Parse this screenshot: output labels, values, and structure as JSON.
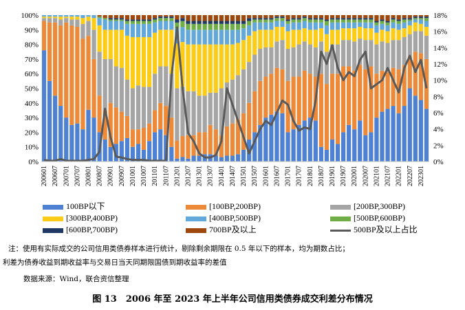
{
  "chart_data": {
    "type": "bar",
    "subtype": "stacked-100-with-line",
    "categories": [
      "200601",
      "200604",
      "200607",
      "200610",
      "200701",
      "200704",
      "200707",
      "200710",
      "200801",
      "200804",
      "200807",
      "200810",
      "200901",
      "200904",
      "200907",
      "200910",
      "201001",
      "201004",
      "201007",
      "201010",
      "201101",
      "201104",
      "201107",
      "201110",
      "201201",
      "201204",
      "201207",
      "201210",
      "201301",
      "201304",
      "201307",
      "201310",
      "201401",
      "201404",
      "201407",
      "201410",
      "201501",
      "201504",
      "201507",
      "201510",
      "201601",
      "201604",
      "201607",
      "201610",
      "201701",
      "201704",
      "201707",
      "201710",
      "201801",
      "201804",
      "201807",
      "201810",
      "201901",
      "201904",
      "201907",
      "201910",
      "202001",
      "202004",
      "202007",
      "202010",
      "202101",
      "202104",
      "202107",
      "202110",
      "202201",
      "202204",
      "202207",
      "202210",
      "202301",
      "202304"
    ],
    "x_tick_labels": [
      "200601",
      "200607",
      "200701",
      "200707",
      "200801",
      "200807",
      "200901",
      "200907",
      "201001",
      "201007",
      "201101",
      "201107",
      "201201",
      "201207",
      "201301",
      "201307",
      "201401",
      "201407",
      "201501",
      "201507",
      "201601",
      "201607",
      "201701",
      "201707",
      "201801",
      "201807",
      "201901",
      "201907",
      "202001",
      "202007",
      "202101",
      "202107",
      "202201",
      "202207",
      "202301"
    ],
    "y_left": {
      "ticks": [
        "0%",
        "10%",
        "20%",
        "30%",
        "40%",
        "50%",
        "60%",
        "70%",
        "80%",
        "90%",
        "100%"
      ],
      "range": [
        0,
        100
      ]
    },
    "y_right": {
      "ticks": [
        "0%",
        "2%",
        "4%",
        "6%",
        "8%",
        "10%",
        "12%",
        "14%",
        "16%",
        "18%"
      ],
      "range": [
        0,
        18
      ]
    },
    "grid": false,
    "legend_position": "bottom",
    "series": [
      {
        "name": "100BP以下",
        "color": "#4f81d2",
        "axis": "left",
        "values": [
          76,
          55,
          45,
          38,
          30,
          25,
          26,
          22,
          35,
          30,
          20,
          15,
          10,
          12,
          14,
          16,
          10,
          12,
          8,
          14,
          20,
          22,
          18,
          10,
          2,
          3,
          2,
          4,
          4,
          5,
          5,
          4,
          3,
          4,
          4,
          5,
          8,
          15,
          20,
          25,
          30,
          32,
          34,
          33,
          20,
          22,
          25,
          28,
          30,
          28,
          10,
          8,
          15,
          12,
          20,
          25,
          22,
          28,
          18,
          20,
          30,
          34,
          36,
          38,
          33,
          38,
          50,
          45,
          42,
          36
        ]
      },
      {
        "name": "[100BP,200BP)",
        "color": "#ed8a3a",
        "axis": "left",
        "values": [
          20,
          40,
          50,
          55,
          65,
          68,
          66,
          62,
          50,
          40,
          25,
          20,
          30,
          25,
          20,
          15,
          12,
          10,
          15,
          12,
          15,
          18,
          20,
          20,
          12,
          14,
          16,
          14,
          16,
          15,
          20,
          18,
          15,
          20,
          22,
          24,
          25,
          25,
          28,
          30,
          28,
          28,
          30,
          30,
          35,
          36,
          33,
          34,
          30,
          30,
          50,
          45,
          45,
          48,
          45,
          40,
          40,
          38,
          45,
          45,
          30,
          28,
          25,
          26,
          30,
          28,
          22,
          30,
          32,
          34
        ]
      },
      {
        "name": "[200BP,300BP)",
        "color": "#a5a5a5",
        "axis": "left",
        "values": [
          2,
          3,
          3,
          4,
          3,
          4,
          5,
          10,
          10,
          20,
          30,
          35,
          30,
          28,
          30,
          25,
          28,
          30,
          28,
          25,
          25,
          25,
          27,
          30,
          35,
          33,
          30,
          30,
          25,
          25,
          22,
          25,
          32,
          30,
          30,
          30,
          30,
          28,
          25,
          22,
          20,
          18,
          18,
          20,
          22,
          20,
          22,
          20,
          20,
          20,
          22,
          22,
          20,
          20,
          18,
          18,
          20,
          18,
          20,
          18,
          20,
          20,
          20,
          19,
          20,
          19,
          15,
          14,
          15,
          16
        ]
      },
      {
        "name": "[300BP,400BP)",
        "color": "#fccc18",
        "axis": "left",
        "values": [
          1,
          1,
          1,
          2,
          1,
          2,
          2,
          4,
          3,
          8,
          18,
          20,
          20,
          25,
          26,
          30,
          35,
          33,
          34,
          34,
          28,
          25,
          25,
          30,
          30,
          30,
          32,
          32,
          35,
          35,
          33,
          33,
          30,
          26,
          24,
          22,
          20,
          18,
          16,
          13,
          12,
          12,
          10,
          9,
          12,
          12,
          10,
          9,
          10,
          12,
          9,
          12,
          10,
          10,
          8,
          8,
          9,
          8,
          8,
          8,
          8,
          8,
          8,
          8,
          7,
          6,
          6,
          6,
          5,
          6
        ]
      },
      {
        "name": "[400BP,500BP)",
        "color": "#62a8da",
        "axis": "left",
        "values": [
          1,
          1,
          1,
          1,
          1,
          1,
          1,
          2,
          1,
          2,
          5,
          7,
          6,
          6,
          6,
          8,
          9,
          9,
          9,
          9,
          7,
          6,
          6,
          6,
          10,
          10,
          10,
          10,
          10,
          10,
          10,
          10,
          10,
          10,
          10,
          9,
          8,
          7,
          6,
          5,
          5,
          5,
          4,
          4,
          5,
          5,
          5,
          5,
          5,
          5,
          4,
          6,
          5,
          5,
          4,
          4,
          4,
          3,
          4,
          4,
          5,
          4,
          4,
          4,
          4,
          4,
          3,
          2,
          3,
          4
        ]
      },
      {
        "name": "[500BP,600BP)",
        "color": "#70ad47",
        "axis": "left",
        "values": [
          0,
          0,
          0,
          0,
          0,
          0,
          0,
          0,
          0,
          0,
          1,
          1,
          1,
          1,
          1,
          2,
          2,
          2,
          2,
          2,
          2,
          2,
          2,
          2,
          4,
          4,
          4,
          4,
          4,
          4,
          4,
          4,
          4,
          4,
          4,
          4,
          3,
          3,
          2,
          2,
          2,
          2,
          2,
          2,
          2,
          2,
          2,
          2,
          2,
          2,
          2,
          3,
          2,
          2,
          2,
          2,
          2,
          2,
          2,
          2,
          2,
          2,
          2,
          2,
          2,
          2,
          1,
          1,
          1,
          2
        ]
      },
      {
        "name": "[600BP,700BP)",
        "color": "#1f3864",
        "axis": "left",
        "values": [
          0,
          0,
          0,
          0,
          0,
          0,
          0,
          0,
          0,
          0,
          0,
          0,
          1,
          1,
          1,
          1,
          1,
          1,
          1,
          1,
          1,
          1,
          1,
          1,
          2,
          2,
          2,
          2,
          2,
          2,
          2,
          2,
          2,
          2,
          2,
          2,
          2,
          2,
          1,
          1,
          1,
          1,
          1,
          1,
          1,
          1,
          1,
          1,
          1,
          1,
          1,
          1,
          1,
          1,
          1,
          1,
          1,
          1,
          1,
          1,
          1,
          1,
          1,
          1,
          1,
          1,
          1,
          1,
          1,
          1
        ]
      },
      {
        "name": "700BP及以上",
        "color": "#9e480e",
        "axis": "left",
        "values": [
          0,
          0,
          0,
          0,
          0,
          0,
          0,
          0,
          0,
          0,
          1,
          2,
          2,
          2,
          2,
          3,
          3,
          3,
          3,
          3,
          2,
          1,
          1,
          1,
          3,
          2,
          4,
          4,
          4,
          4,
          4,
          4,
          4,
          4,
          4,
          4,
          4,
          2,
          2,
          2,
          2,
          2,
          1,
          1,
          3,
          2,
          2,
          1,
          2,
          2,
          2,
          3,
          2,
          2,
          2,
          2,
          2,
          2,
          2,
          2,
          4,
          3,
          4,
          2,
          3,
          2,
          2,
          1,
          1,
          1
        ]
      },
      {
        "name": "500BP及以上占比",
        "color": "#595959",
        "axis": "right",
        "kind": "line",
        "values": [
          0.2,
          0.1,
          0.1,
          0.3,
          0.1,
          0.1,
          0.1,
          0.1,
          0.2,
          0.3,
          1.2,
          6.5,
          3.0,
          0.6,
          0.5,
          0.3,
          0.2,
          0.2,
          0.2,
          0.1,
          0.1,
          0.1,
          0.1,
          10.5,
          16.5,
          9.0,
          3.5,
          2.5,
          1.0,
          0.5,
          0.5,
          0.8,
          2.5,
          9.0,
          7.0,
          5.0,
          3.0,
          1.0,
          2.5,
          4.0,
          5.0,
          4.5,
          6.0,
          7.5,
          7.0,
          5.0,
          3.8,
          4.2,
          4.0,
          7.5,
          13.5,
          12.0,
          14.3,
          11.5,
          10.0,
          11.0,
          10.5,
          12.5,
          13.5,
          9.0,
          9.5,
          10.0,
          11.5,
          10.0,
          8.5,
          11.5,
          13.0,
          11.0,
          12.5,
          9.0
        ]
      }
    ]
  },
  "note": {
    "line1": "注：使用有实际成交的公司信用类债券样本进行统计，剔除剩余期限在 0.5 年以下的样本，均为期数占比；",
    "line2": "利差为债券收益到期收益率与交易日当天同期限国债到期收益率的差值",
    "line3": "数据来源：Wind，联合资信整理"
  },
  "caption": "图 13　2006 年至 2023 年上半年公司信用类债券成交利差分布情况"
}
